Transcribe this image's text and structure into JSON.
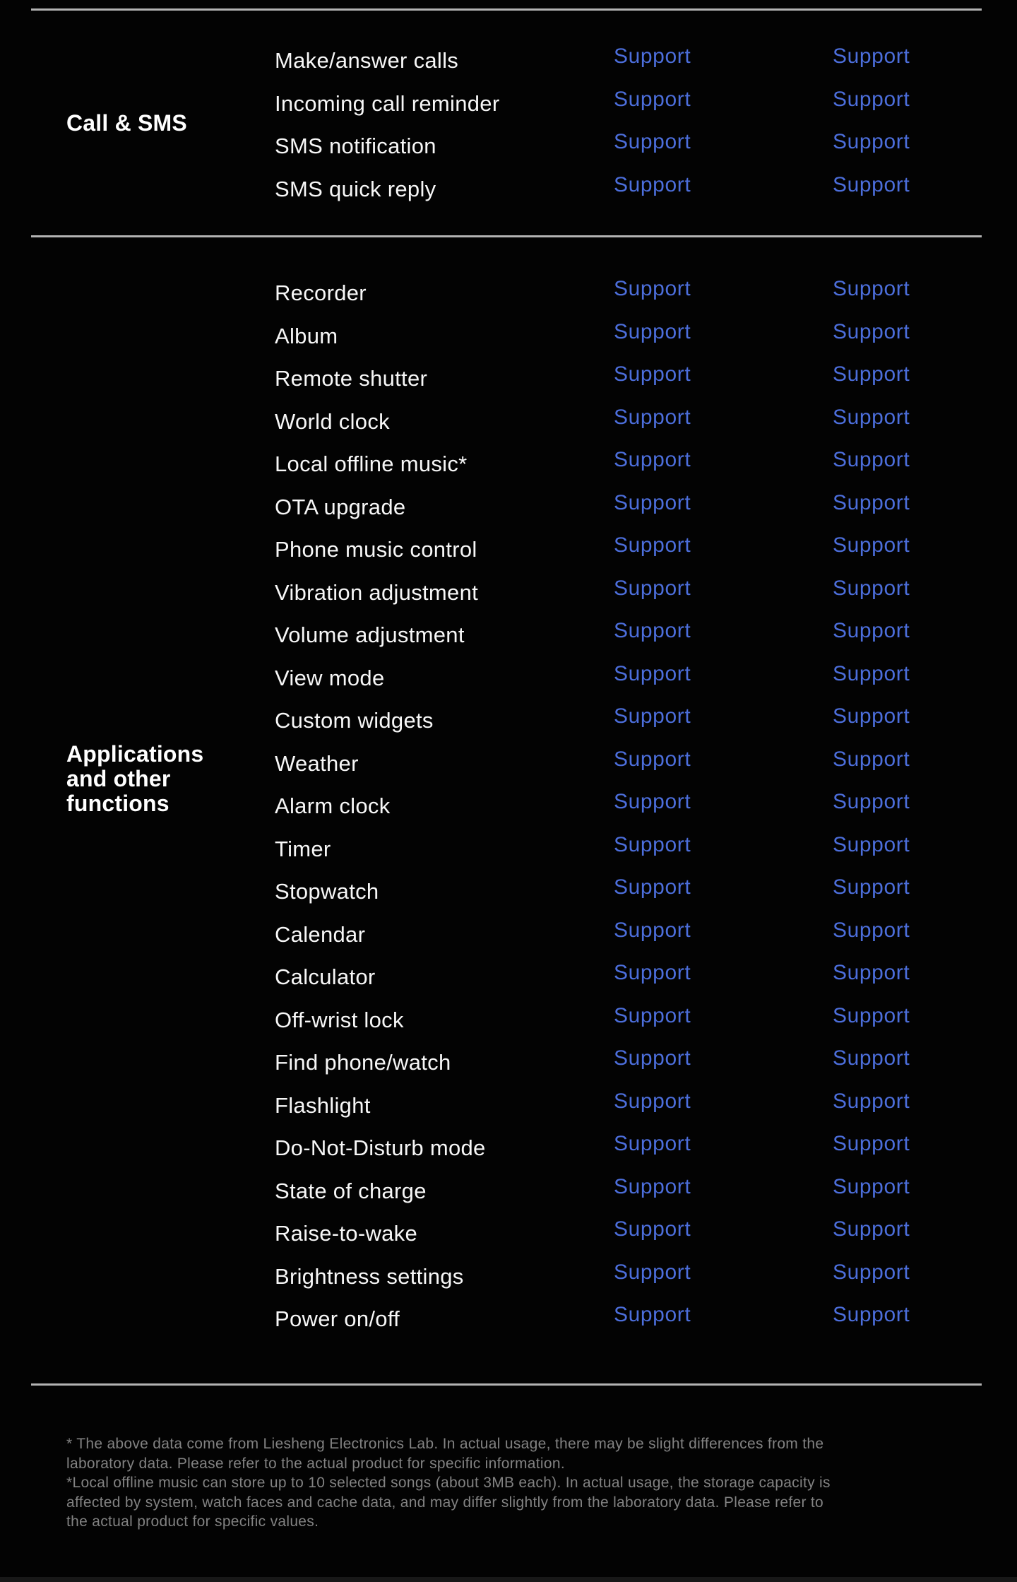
{
  "colors": {
    "bg": "#030303",
    "support_blue": "#4C6EDB",
    "divider_gray": "#b3b3b3",
    "label_white": "#f7f7f7",
    "footnote_gray": "#828282"
  },
  "table": {
    "support_label": "Support",
    "sections": [
      {
        "header_lines": [
          "Call & SMS"
        ],
        "rows": [
          {
            "label": "Make/answer calls",
            "values": [
              "Support",
              "Support"
            ]
          },
          {
            "label": "Incoming call reminder",
            "values": [
              "Support",
              "Support"
            ]
          },
          {
            "label": "SMS notification",
            "values": [
              "Support",
              "Support"
            ]
          },
          {
            "label": "SMS quick reply",
            "values": [
              "Support",
              "Support"
            ]
          }
        ]
      },
      {
        "header_lines": [
          "Applications",
          "and other",
          "functions"
        ],
        "rows": [
          {
            "label": "Recorder",
            "values": [
              "Support",
              "Support"
            ]
          },
          {
            "label": "Album",
            "values": [
              "Support",
              "Support"
            ]
          },
          {
            "label": "Remote shutter",
            "values": [
              "Support",
              "Support"
            ]
          },
          {
            "label": "World clock",
            "values": [
              "Support",
              "Support"
            ]
          },
          {
            "label": "Local offline music*",
            "values": [
              "Support",
              "Support"
            ]
          },
          {
            "label": "OTA upgrade",
            "values": [
              "Support",
              "Support"
            ]
          },
          {
            "label": "Phone music control",
            "values": [
              "Support",
              "Support"
            ]
          },
          {
            "label": "Vibration adjustment",
            "values": [
              "Support",
              "Support"
            ]
          },
          {
            "label": "Volume adjustment",
            "values": [
              "Support",
              "Support"
            ]
          },
          {
            "label": "View mode",
            "values": [
              "Support",
              "Support"
            ]
          },
          {
            "label": "Custom widgets",
            "values": [
              "Support",
              "Support"
            ]
          },
          {
            "label": "Weather",
            "values": [
              "Support",
              "Support"
            ]
          },
          {
            "label": "Alarm clock",
            "values": [
              "Support",
              "Support"
            ]
          },
          {
            "label": "Timer",
            "values": [
              "Support",
              "Support"
            ]
          },
          {
            "label": "Stopwatch",
            "values": [
              "Support",
              "Support"
            ]
          },
          {
            "label": "Calendar",
            "values": [
              "Support",
              "Support"
            ]
          },
          {
            "label": "Calculator",
            "values": [
              "Support",
              "Support"
            ]
          },
          {
            "label": "Off-wrist lock",
            "values": [
              "Support",
              "Support"
            ]
          },
          {
            "label": "Find phone/watch",
            "values": [
              "Support",
              "Support"
            ]
          },
          {
            "label": "Flashlight",
            "values": [
              "Support",
              "Support"
            ]
          },
          {
            "label": "Do-Not-Disturb mode",
            "values": [
              "Support",
              "Support"
            ]
          },
          {
            "label": "State of charge",
            "values": [
              "Support",
              "Support"
            ]
          },
          {
            "label": "Raise-to-wake",
            "values": [
              "Support",
              "Support"
            ]
          },
          {
            "label": "Brightness settings",
            "values": [
              "Support",
              "Support"
            ]
          },
          {
            "label": "Power on/off",
            "values": [
              "Support",
              "Support"
            ]
          }
        ]
      }
    ]
  },
  "footnotes": {
    "lines": [
      "* The above data come from Liesheng Electronics Lab. In actual usage, there may be slight differences from the",
      "laboratory data. Please refer to the actual product for specific information.",
      "*Local offline music can store up to 10 selected songs (about 3MB each). In actual usage, the storage capacity is",
      "affected by system, watch faces and cache data, and may differ slightly from the laboratory data. Please refer to",
      "the actual product for specific values."
    ]
  }
}
